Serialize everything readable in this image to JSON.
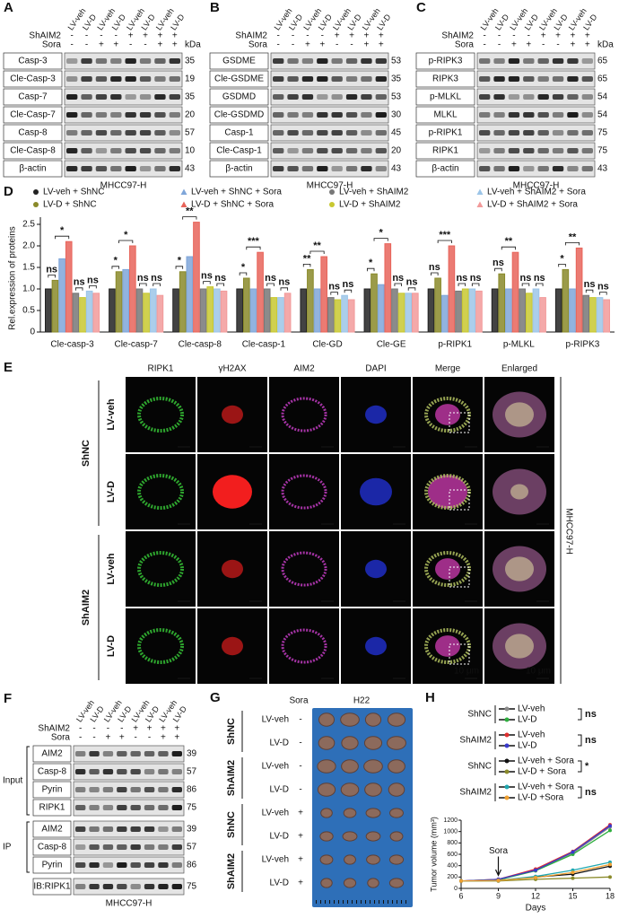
{
  "blots": {
    "A": {
      "letter": "A",
      "lanes": [
        "LV-veh",
        "LV-D",
        "LV-veh",
        "LV-D",
        "LV-veh",
        "LV-D",
        "LV-veh",
        "LV-D"
      ],
      "conditions": [
        {
          "label": "ShAIM2",
          "signs": [
            "-",
            "-",
            "-",
            "-",
            "+",
            "+",
            "+",
            "+"
          ]
        },
        {
          "label": "Sora",
          "signs": [
            "-",
            "-",
            "+",
            "+",
            "-",
            "-",
            "+",
            "+"
          ]
        }
      ],
      "kda_label": "kDa",
      "blots": [
        {
          "label": "Casp-3",
          "kda": "35"
        },
        {
          "label": "Cle-Casp-3",
          "kda": "19"
        },
        {
          "label": "Casp-7",
          "kda": "35"
        },
        {
          "label": "Cle-Casp-7",
          "kda": "20"
        },
        {
          "label": "Casp-8",
          "kda": "57"
        },
        {
          "label": "Cle-Casp-8",
          "kda": "10"
        },
        {
          "label": "β-actin",
          "kda": "43"
        }
      ],
      "caption": "MHCC97-H"
    },
    "B": {
      "letter": "B",
      "lanes": [
        "LV-veh",
        "LV-D",
        "LV-veh",
        "LV-D",
        "LV-veh",
        "LV-D",
        "LV-veh",
        "LV-D"
      ],
      "conditions": [
        {
          "label": "ShAIM2",
          "signs": [
            "-",
            "-",
            "-",
            "-",
            "+",
            "+",
            "+",
            "+"
          ]
        },
        {
          "label": "Sora",
          "signs": [
            "-",
            "-",
            "+",
            "+",
            "-",
            "-",
            "+",
            "+"
          ]
        }
      ],
      "blots": [
        {
          "label": "GSDME",
          "kda": "53"
        },
        {
          "label": "Cle-GSDME",
          "kda": "35"
        },
        {
          "label": "GSDMD",
          "kda": "53"
        },
        {
          "label": "Cle-GSDMD",
          "kda": "30"
        },
        {
          "label": "Casp-1",
          "kda": "45"
        },
        {
          "label": "Cle-Casp-1",
          "kda": "20"
        },
        {
          "label": "β-actin",
          "kda": "43"
        }
      ],
      "caption": "MHCC97-H"
    },
    "C": {
      "letter": "C",
      "lanes": [
        "LV-veh",
        "LV-D",
        "LV-veh",
        "LV-D",
        "LV-veh",
        "LV-D",
        "LV-veh",
        "LV-D"
      ],
      "conditions": [
        {
          "label": "ShAIM2",
          "signs": [
            "-",
            "-",
            "-",
            "-",
            "+",
            "+",
            "+",
            "+"
          ]
        },
        {
          "label": "Sora",
          "signs": [
            "-",
            "-",
            "+",
            "+",
            "-",
            "-",
            "+",
            "+"
          ]
        }
      ],
      "kda_label": "kDa",
      "blots": [
        {
          "label": "p-RIPK3",
          "kda": "65"
        },
        {
          "label": "RIPK3",
          "kda": "65"
        },
        {
          "label": "p-MLKL",
          "kda": "54"
        },
        {
          "label": "MLKL",
          "kda": "54"
        },
        {
          "label": "p-RIPK1",
          "kda": "75"
        },
        {
          "label": "RIPK1",
          "kda": "75"
        },
        {
          "label": "β-actin",
          "kda": "43"
        }
      ],
      "caption": "MHCC97-H"
    },
    "F": {
      "letter": "F",
      "lanes": [
        "LV-veh",
        "LV-D",
        "LV-veh",
        "LV-D",
        "LV-veh",
        "LV-D",
        "LV-veh",
        "LV-D"
      ],
      "conditions": [
        {
          "label": "ShAIM2",
          "signs": [
            "-",
            "-",
            "-",
            "-",
            "+",
            "+",
            "+",
            "+"
          ]
        },
        {
          "label": "Sora",
          "signs": [
            "-",
            "-",
            "+",
            "+",
            "-",
            "-",
            "+",
            "+"
          ]
        }
      ],
      "groups": [
        {
          "label": "Input",
          "blots": [
            {
              "label": "AIM2",
              "kda": "39"
            },
            {
              "label": "Casp-8",
              "kda": "57"
            },
            {
              "label": "Pyrin",
              "kda": "86"
            },
            {
              "label": "RIPK1",
              "kda": "75"
            }
          ]
        },
        {
          "label": "IP",
          "blots": [
            {
              "label": "AIM2",
              "kda": "39"
            },
            {
              "label": "Casp-8",
              "kda": "57"
            },
            {
              "label": "Pyrin",
              "kda": "86"
            }
          ]
        }
      ],
      "extra_blots": [
        {
          "label": "IB:RIPK1",
          "kda": "75"
        }
      ],
      "caption": "MHCC97-H"
    }
  },
  "panel_E": {
    "letter": "E",
    "columns": [
      {
        "label": "RIPK1",
        "color": "#2e9e2e"
      },
      {
        "label": "γH2AX",
        "color": "#d42020"
      },
      {
        "label": "AIM2",
        "color": "#a030a0"
      },
      {
        "label": "DAPI",
        "color": "#2a3ab0"
      },
      {
        "label": "Merge",
        "color": "#222222"
      },
      {
        "label": "Enlarged",
        "color": "#222222"
      }
    ],
    "groups": [
      {
        "label": "ShNC",
        "rows": [
          "LV-veh",
          "LV-D"
        ]
      },
      {
        "label": "ShAIM2",
        "rows": [
          "LV-veh",
          "LV-D"
        ]
      }
    ],
    "scale_bar_label": "10 μm",
    "side_label": "MHCC97-H"
  },
  "panel_G": {
    "letter": "G",
    "sora_header": "Sora",
    "model": "H22",
    "groups": [
      {
        "label": "ShNC",
        "rows": [
          {
            "label": "LV-veh",
            "sora": "-"
          },
          {
            "label": "LV-D",
            "sora": "-"
          }
        ]
      },
      {
        "label": "ShAIM2",
        "rows": [
          {
            "label": "LV-veh",
            "sora": "-"
          },
          {
            "label": "LV-D",
            "sora": "-"
          }
        ]
      },
      {
        "label": "ShNC",
        "rows": [
          {
            "label": "LV-veh",
            "sora": "+"
          },
          {
            "label": "LV-D",
            "sora": "+"
          }
        ]
      },
      {
        "label": "ShAIM2",
        "rows": [
          {
            "label": "LV-veh",
            "sora": "+"
          },
          {
            "label": "LV-D",
            "sora": "+"
          }
        ]
      }
    ]
  },
  "chart_data": [
    {
      "type": "bar",
      "panel_label": "D",
      "ylabel": "Rel.expression of proteins",
      "categories": [
        "Cle-casp-3",
        "Cle-casp-7",
        "Cle-casp-8",
        "Cle-casp-1",
        "Cle-GD",
        "Cle-GE",
        "p-RIPK1",
        "p-MLKL",
        "p-RIPK3"
      ],
      "series": [
        {
          "name": "LV-veh + ShNC",
          "color": "#222222",
          "values": [
            1.0,
            1.0,
            1.0,
            1.0,
            1.0,
            1.0,
            1.0,
            1.0,
            1.0
          ]
        },
        {
          "name": "LV-D + ShNC",
          "color": "#8a8a2a",
          "values": [
            1.2,
            1.4,
            1.4,
            1.25,
            1.45,
            1.35,
            1.25,
            1.35,
            1.45
          ]
        },
        {
          "name": "LV-veh + ShNC + Sora",
          "color": "#7fa6d9",
          "values": [
            1.7,
            1.45,
            1.75,
            1.0,
            1.0,
            1.1,
            0.85,
            1.0,
            1.0
          ]
        },
        {
          "name": "LV-D + ShNC + Sora",
          "color": "#e8645a",
          "values": [
            2.1,
            2.0,
            2.55,
            1.85,
            1.75,
            2.05,
            2.0,
            1.85,
            1.95
          ]
        },
        {
          "name": "LV-veh + ShAIM2",
          "color": "#777777",
          "values": [
            0.9,
            1.0,
            1.0,
            1.0,
            0.8,
            1.0,
            0.95,
            1.0,
            0.85
          ]
        },
        {
          "name": "LV-D + ShAIM2",
          "color": "#c8c830",
          "values": [
            0.8,
            0.9,
            1.05,
            0.8,
            0.75,
            0.9,
            1.0,
            0.9,
            0.8
          ]
        },
        {
          "name": "LV-veh + ShAIM2  + Sora",
          "color": "#9cc5e8",
          "values": [
            0.95,
            1.0,
            1.0,
            0.8,
            0.85,
            0.9,
            1.0,
            1.0,
            0.8
          ]
        },
        {
          "name": "LV-D + ShAIM2  + Sora",
          "color": "#f29a9a",
          "values": [
            0.9,
            0.85,
            0.95,
            0.9,
            0.75,
            0.9,
            0.95,
            0.8,
            0.75
          ]
        }
      ],
      "significance": [
        [
          "ns",
          "*",
          "ns",
          "ns"
        ],
        [
          "*",
          "*",
          "ns",
          "ns"
        ],
        [
          "*",
          "**",
          "ns",
          "ns"
        ],
        [
          "*",
          "***",
          "ns",
          "ns"
        ],
        [
          "**",
          "**",
          "ns",
          "ns"
        ],
        [
          "*",
          "*",
          "ns",
          "ns"
        ],
        [
          "ns",
          "***",
          "ns",
          "ns"
        ],
        [
          "ns",
          "**",
          "ns",
          "ns"
        ],
        [
          "*",
          "**",
          "ns",
          "ns"
        ]
      ],
      "ylim": [
        0,
        2.5
      ],
      "yticks": [
        0,
        0.5,
        {
          "value": 1,
          "label": "1.0"
        },
        1.5,
        {
          "value": 2,
          "label": "2.0"
        },
        2.5
      ]
    },
    {
      "type": "line",
      "panel_label": "H",
      "xlabel": "Days",
      "ylabel": "Tumor volume (mm³)",
      "x": [
        6,
        9,
        12,
        15,
        18
      ],
      "series": [
        {
          "name": "LV-veh",
          "color": "#8c8c8c",
          "values": [
            130,
            150,
            330,
            620,
            1080
          ]
        },
        {
          "name": "LV-D",
          "color": "#2eae3e",
          "values": [
            130,
            150,
            310,
            600,
            1020
          ]
        },
        {
          "name": "LV-veh",
          "color": "#e03030",
          "values": [
            130,
            160,
            340,
            650,
            1120
          ]
        },
        {
          "name": "LV-D",
          "color": "#3a3acc",
          "values": [
            130,
            160,
            320,
            640,
            1100
          ]
        },
        {
          "name": "LV-veh + Sora",
          "color": "#111111",
          "values": [
            130,
            140,
            200,
            250,
            390
          ]
        },
        {
          "name": "LV-D + Sora",
          "color": "#8a8a2a",
          "values": [
            130,
            130,
            160,
            180,
            200
          ]
        },
        {
          "name": "LV-veh + Sora",
          "color": "#20a8b0",
          "values": [
            130,
            140,
            210,
            320,
            460
          ]
        },
        {
          "name": "LV-D +Sora",
          "color": "#f0a030",
          "values": [
            130,
            140,
            190,
            280,
            420
          ]
        }
      ],
      "legend_groups": [
        {
          "label": "ShNC",
          "annotation": "ns"
        },
        {
          "label": "ShAIM2",
          "annotation": "ns"
        },
        {
          "label": "ShNC",
          "annotation": "*"
        },
        {
          "label": "ShAIM2",
          "annotation": "ns"
        }
      ],
      "annotations": [
        {
          "text": "Sora",
          "x": 9
        }
      ],
      "xlim": [
        6,
        18
      ],
      "xticks": [
        6,
        9,
        12,
        15,
        18
      ],
      "ylim": [
        0,
        1200
      ],
      "yticks": [
        0,
        200,
        400,
        600,
        800,
        1000,
        1200
      ]
    }
  ]
}
